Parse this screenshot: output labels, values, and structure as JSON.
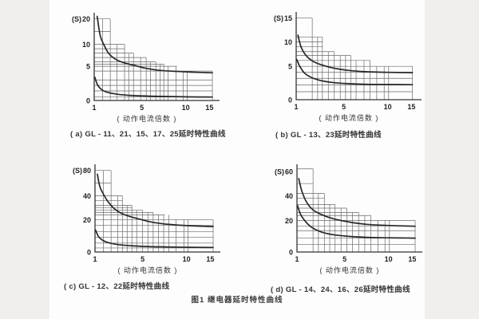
{
  "page": {
    "figure_caption": "图1 继电器延时特性曲线",
    "background_color": "#f2eeee",
    "paper_color": "#fefdfd",
    "line_color": "#333333"
  },
  "chart_data": [
    {
      "type": "line",
      "id": "a",
      "caption": "( a) GL - 11、21、15、17、25延时特性曲线",
      "ylabel": "(S)",
      "xlabel": "( 动作电流倍数 )",
      "legend": "none",
      "grid": "stepped tolerance-band grid",
      "xlim": [
        1,
        15.6
      ],
      "ylim": [
        0,
        20
      ],
      "xticks": [
        [
          1,
          0
        ],
        [
          5,
          0.38
        ],
        [
          10,
          0.73
        ],
        [
          15,
          0.92
        ]
      ],
      "yticks": [
        [
          0,
          0
        ],
        [
          5,
          0.39
        ],
        [
          10,
          0.64
        ],
        [
          20,
          0.93
        ]
      ],
      "h_lines": [
        [
          20,
          2.35
        ],
        [
          15,
          2.35
        ],
        [
          10,
          3.55
        ],
        [
          9,
          3.55
        ],
        [
          8,
          4.3
        ],
        [
          7,
          5.5
        ],
        [
          6,
          6.6
        ],
        [
          5.5,
          7.5
        ],
        [
          5,
          9
        ],
        [
          4.3,
          15.6
        ],
        [
          3,
          15.6
        ],
        [
          2.2,
          15.6
        ],
        [
          1.4,
          15.6
        ],
        [
          0.5,
          15.6
        ]
      ],
      "v_lines": [
        [
          1.7,
          20
        ],
        [
          2.35,
          20
        ],
        [
          2.9,
          10
        ],
        [
          3.55,
          10
        ],
        [
          3.9,
          8
        ],
        [
          4.3,
          8
        ],
        [
          4.9,
          7
        ],
        [
          5.5,
          7
        ],
        [
          6,
          6
        ],
        [
          6.6,
          6
        ],
        [
          7.1,
          5.5
        ],
        [
          7.5,
          5.5
        ],
        [
          8,
          5
        ],
        [
          8.9,
          5
        ],
        [
          9.7,
          4.3
        ],
        [
          10.3,
          4.3
        ],
        [
          15.6,
          4.3
        ]
      ],
      "series": [
        {
          "name": "upper-limit-curve",
          "points": [
            [
              1.25,
              21
            ],
            [
              1.5,
              13.5
            ],
            [
              1.8,
              10
            ],
            [
              2.2,
              8
            ],
            [
              2.8,
              6.6
            ],
            [
              3.5,
              5.8
            ],
            [
              4.5,
              5.1
            ],
            [
              5.5,
              4.7
            ],
            [
              7,
              4.4
            ],
            [
              9,
              4.25
            ],
            [
              11,
              4.15
            ],
            [
              15.6,
              4.05
            ]
          ]
        },
        {
          "name": "lower-limit-curve",
          "points": [
            [
              1.05,
              3.4
            ],
            [
              1.3,
              2.2
            ],
            [
              1.7,
              1.5
            ],
            [
              2.2,
              1.15
            ],
            [
              3,
              0.9
            ],
            [
              4,
              0.75
            ],
            [
              5.5,
              0.65
            ],
            [
              8,
              0.58
            ],
            [
              11,
              0.53
            ],
            [
              15.6,
              0.5
            ]
          ]
        }
      ]
    },
    {
      "type": "line",
      "id": "b",
      "caption": "( b) GL - 13、23延时特性曲线",
      "ylabel": "(S)",
      "xlabel": "( 动作电流倍数 )",
      "legend": "none",
      "grid": "stepped tolerance-band grid",
      "xlim": [
        1,
        15.2
      ],
      "ylim": [
        0,
        15
      ],
      "xticks": [
        [
          1,
          0
        ],
        [
          5,
          0.38
        ],
        [
          10,
          0.73
        ],
        [
          15,
          0.92
        ]
      ],
      "yticks": [
        [
          0,
          0
        ],
        [
          5,
          0.38
        ],
        [
          10,
          0.66
        ],
        [
          15,
          0.93
        ]
      ],
      "h_lines": [
        [
          15,
          2.35
        ],
        [
          11,
          3.2
        ],
        [
          10,
          3.2
        ],
        [
          9,
          3.2
        ],
        [
          8,
          4.2
        ],
        [
          7.2,
          5.8
        ],
        [
          6.2,
          8
        ],
        [
          5,
          15.2
        ],
        [
          4.1,
          15.2
        ],
        [
          3.2,
          15.2
        ],
        [
          2.2,
          15.2
        ],
        [
          1.2,
          15.2
        ]
      ],
      "v_lines": [
        [
          2.35,
          15
        ],
        [
          2.8,
          11
        ],
        [
          3.2,
          11
        ],
        [
          3.7,
          8
        ],
        [
          4.2,
          8
        ],
        [
          4.7,
          7.2
        ],
        [
          5.2,
          7.2
        ],
        [
          5.8,
          7.2
        ],
        [
          6.4,
          6.2
        ],
        [
          7.3,
          6.2
        ],
        [
          8,
          6.2
        ],
        [
          8.75,
          5
        ],
        [
          9.6,
          5
        ],
        [
          10.2,
          5
        ],
        [
          15.2,
          5
        ]
      ],
      "series": [
        {
          "name": "upper-limit-curve",
          "points": [
            [
              1.15,
              11.4
            ],
            [
              1.4,
              9
            ],
            [
              1.8,
              7.3
            ],
            [
              2.3,
              6.2
            ],
            [
              3,
              5.4
            ],
            [
              4,
              4.8
            ],
            [
              5.5,
              4.4
            ],
            [
              7.5,
              4.2
            ],
            [
              10,
              4.1
            ],
            [
              15.2,
              4.05
            ]
          ]
        },
        {
          "name": "lower-limit-curve",
          "points": [
            [
              1.05,
              6.4
            ],
            [
              1.3,
              5
            ],
            [
              1.7,
              4
            ],
            [
              2.2,
              3.4
            ],
            [
              3,
              2.9
            ],
            [
              4,
              2.6
            ],
            [
              5.5,
              2.4
            ],
            [
              8,
              2.3
            ],
            [
              15.2,
              2.25
            ]
          ]
        }
      ]
    },
    {
      "type": "line",
      "id": "c",
      "caption": "( c) GL - 12、22延时特性曲线",
      "ylabel": "(S)",
      "xlabel": "( 动作电流倍数 )",
      "legend": "none",
      "grid": "stepped tolerance-band grid",
      "xlim": [
        1,
        15.6
      ],
      "ylim": [
        0,
        80
      ],
      "xticks": [
        [
          1,
          0
        ],
        [
          5,
          0.38
        ],
        [
          10,
          0.73
        ],
        [
          15,
          0.92
        ]
      ],
      "yticks": [
        [
          0,
          0
        ],
        [
          20,
          0.37
        ],
        [
          40,
          0.64
        ],
        [
          80,
          0.93
        ]
      ],
      "h_lines": [
        [
          80,
          2.35
        ],
        [
          60,
          2.35
        ],
        [
          40,
          3.3
        ],
        [
          36,
          3.3
        ],
        [
          32,
          4.1
        ],
        [
          30,
          4.1
        ],
        [
          28,
          5
        ],
        [
          26,
          6.2
        ],
        [
          24,
          7.5
        ],
        [
          20,
          15.6
        ],
        [
          16.5,
          15.6
        ],
        [
          12.5,
          15.6
        ],
        [
          9,
          15.6
        ],
        [
          5.5,
          15.6
        ],
        [
          2.5,
          15.6
        ]
      ],
      "v_lines": [
        [
          1.7,
          80
        ],
        [
          2.35,
          80
        ],
        [
          2.9,
          40
        ],
        [
          3.3,
          40
        ],
        [
          3.7,
          32
        ],
        [
          4.1,
          32
        ],
        [
          4.5,
          28
        ],
        [
          5,
          28
        ],
        [
          5.6,
          26
        ],
        [
          6.2,
          26
        ],
        [
          6.8,
          24
        ],
        [
          7.4,
          24
        ],
        [
          8,
          24
        ],
        [
          8.8,
          20
        ],
        [
          9.7,
          20
        ],
        [
          10.3,
          20
        ],
        [
          15.6,
          20
        ]
      ],
      "series": [
        {
          "name": "upper-limit-curve",
          "points": [
            [
              1.2,
              74
            ],
            [
              1.4,
              55
            ],
            [
              1.7,
              43
            ],
            [
              2.1,
              35
            ],
            [
              2.7,
              28.5
            ],
            [
              3.5,
              24
            ],
            [
              4.5,
              21
            ],
            [
              6,
              18.5
            ],
            [
              8,
              17
            ],
            [
              10.5,
              16.2
            ],
            [
              15.6,
              15.7
            ]
          ]
        },
        {
          "name": "lower-limit-curve",
          "points": [
            [
              1.05,
              13.5
            ],
            [
              1.3,
              9.5
            ],
            [
              1.7,
              7
            ],
            [
              2.2,
              5.6
            ],
            [
              3,
              4.5
            ],
            [
              4,
              3.9
            ],
            [
              5.5,
              3.4
            ],
            [
              8,
              3.1
            ],
            [
              11,
              2.9
            ],
            [
              15.6,
              2.8
            ]
          ]
        }
      ]
    },
    {
      "type": "line",
      "id": "d",
      "caption": "( d) GL - 14、24、16、26延时特性曲线",
      "ylabel": "(S)",
      "xlabel": "( 动作电流倍数 )",
      "legend": "none",
      "grid": "stepped tolerance-band grid",
      "xlim": [
        1,
        15.6
      ],
      "ylim": [
        0,
        60
      ],
      "xticks": [
        [
          1,
          0
        ],
        [
          5,
          0.38
        ],
        [
          10,
          0.73
        ],
        [
          15,
          0.92
        ]
      ],
      "yticks": [
        [
          0,
          0
        ],
        [
          20,
          0.36
        ],
        [
          40,
          0.64
        ],
        [
          60,
          0.92
        ]
      ],
      "h_lines": [
        [
          62,
          2.35
        ],
        [
          50,
          2.35
        ],
        [
          42,
          3.3
        ],
        [
          38,
          3.3
        ],
        [
          33,
          4.2
        ],
        [
          30,
          5.25
        ],
        [
          26.5,
          6.6
        ],
        [
          24,
          8
        ],
        [
          20,
          15.6
        ],
        [
          16.5,
          15.6
        ],
        [
          13.5,
          15.6
        ],
        [
          8.8,
          15.6
        ],
        [
          4.7,
          15.6
        ]
      ],
      "v_lines": [
        [
          2.35,
          62
        ],
        [
          2.8,
          42
        ],
        [
          3.3,
          42
        ],
        [
          3.75,
          33
        ],
        [
          4.2,
          33
        ],
        [
          4.7,
          30
        ],
        [
          5.25,
          30
        ],
        [
          5.9,
          26.5
        ],
        [
          6.6,
          26.5
        ],
        [
          7.3,
          24
        ],
        [
          8,
          24
        ],
        [
          8.8,
          20
        ],
        [
          9.6,
          20
        ],
        [
          10.2,
          20
        ],
        [
          15.6,
          20
        ]
      ],
      "series": [
        {
          "name": "upper-limit-curve",
          "points": [
            [
              1.15,
              54
            ],
            [
              1.4,
              44
            ],
            [
              1.8,
              35
            ],
            [
              2.3,
              29
            ],
            [
              3,
              25
            ],
            [
              4,
              21.5
            ],
            [
              5.5,
              19
            ],
            [
              7.5,
              17.5
            ],
            [
              10,
              16.8
            ],
            [
              15.6,
              16.3
            ]
          ]
        },
        {
          "name": "lower-limit-curve",
          "points": [
            [
              1.05,
              32
            ],
            [
              1.3,
              25
            ],
            [
              1.7,
              19.5
            ],
            [
              2.2,
              15.8
            ],
            [
              3,
              12.8
            ],
            [
              4,
              11
            ],
            [
              5.5,
              9.9
            ],
            [
              7.5,
              9.3
            ],
            [
              10,
              9
            ],
            [
              15.6,
              8.8
            ]
          ]
        }
      ]
    }
  ]
}
